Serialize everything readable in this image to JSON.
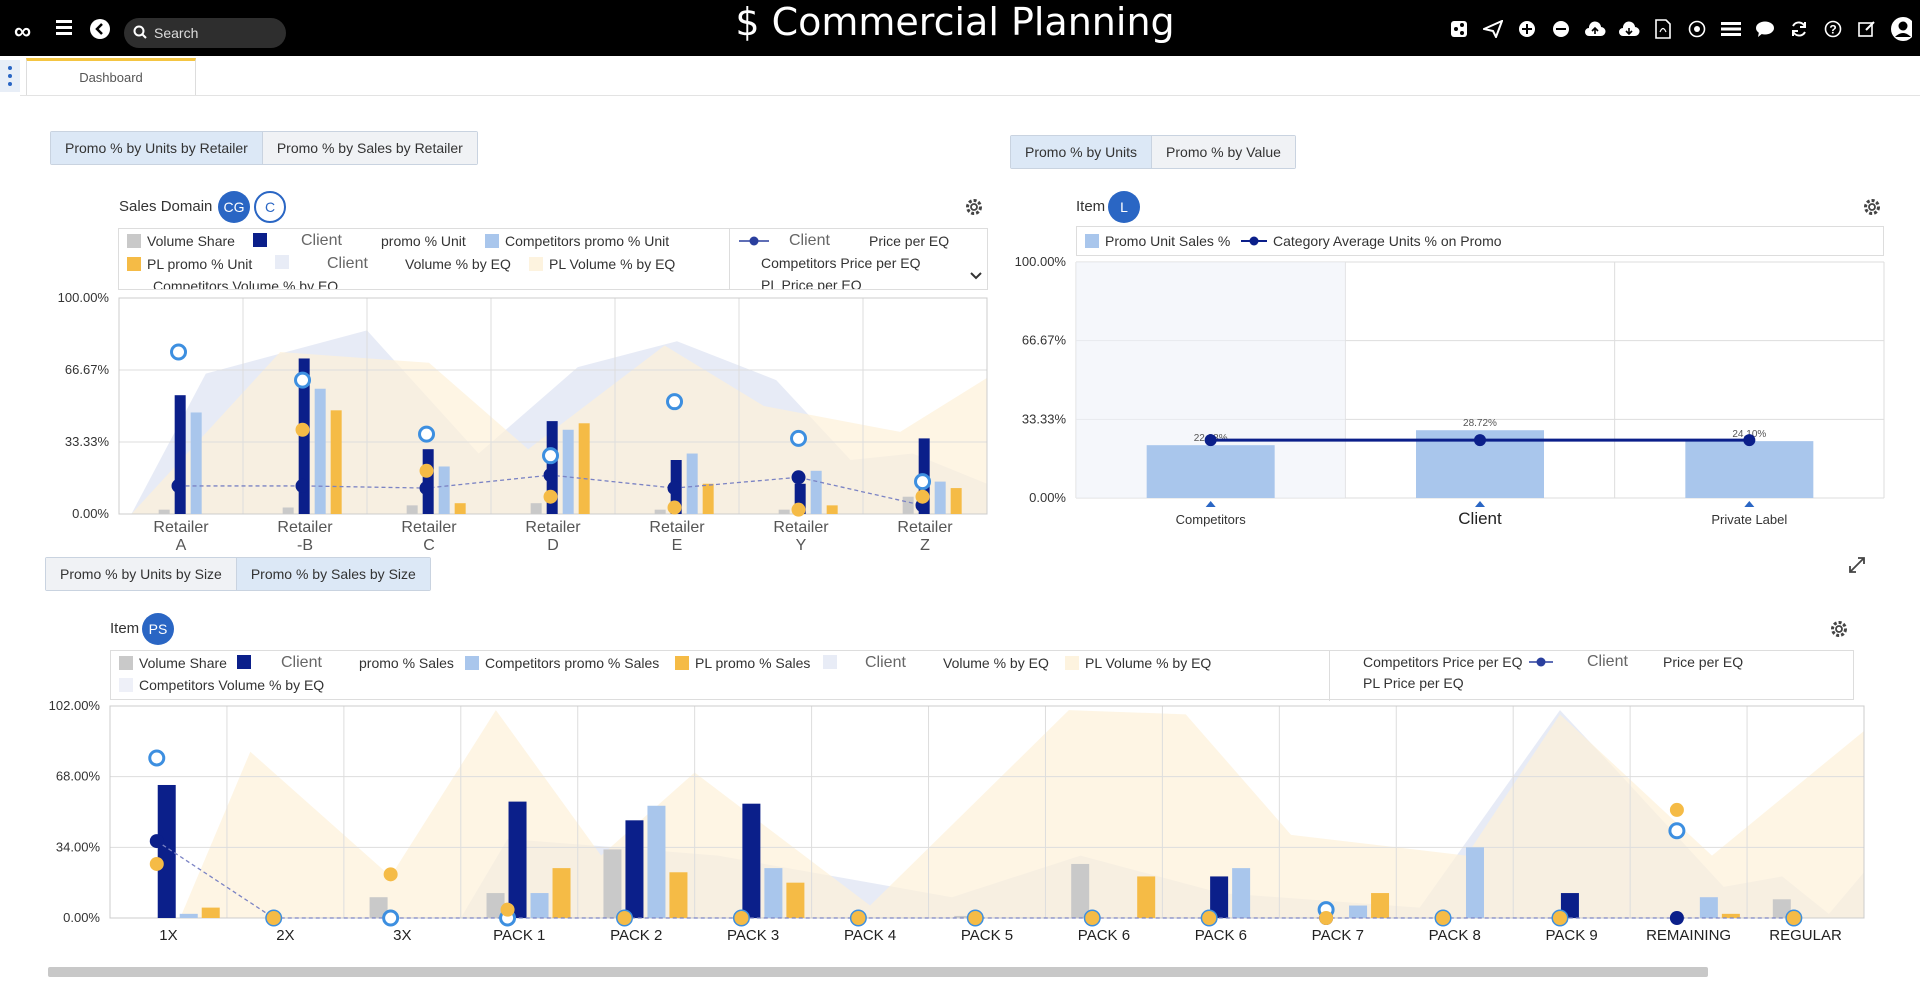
{
  "app": {
    "title": "$ Commercial Planning",
    "logo": "∞",
    "search_placeholder": "Search",
    "toolbar_icons": [
      "share-icon",
      "send-icon",
      "plus-circle-icon",
      "minus-circle-icon",
      "cloud-upload-icon",
      "cloud-download-icon",
      "pdf-icon",
      "target-icon",
      "list-icon",
      "chat-icon",
      "refresh-icon",
      "help-icon",
      "edit-icon",
      "user-icon"
    ]
  },
  "tabs": [
    {
      "label": "Dashboard"
    }
  ],
  "panel_retailer": {
    "buttons": [
      "Promo % by Units by Retailer",
      "Promo % by Sales by Retailer"
    ],
    "active": 0,
    "label": "Sales Domain",
    "badges": [
      "CG",
      "C"
    ],
    "legend": {
      "volume_share": "Volume Share",
      "client1": "Client",
      "promo_unit": "promo % Unit",
      "comp_promo_unit": "Competitors promo % Unit",
      "client2": "Client",
      "price_per_eq": "Price per EQ",
      "pl_promo_unit": "PL promo % Unit",
      "client3": "Client",
      "volume_by_eq": "Volume % by EQ",
      "pl_volume_by_eq": "PL Volume % by EQ",
      "comp_price_per_eq": "Competitors Price per EQ",
      "comp_volume_by_eq": "Competitors Volume % by EQ",
      "pl_price_per_eq": "PL Price per EQ"
    },
    "chart_data": {
      "type": "bar",
      "categories": [
        "Retailer A",
        "Retailer B",
        "Retailer C",
        "Retailer D",
        "Retailer E",
        "Retailer Y",
        "Retailer Z"
      ],
      "category_lines": [
        [
          "Retailer",
          "A"
        ],
        [
          "Retailer",
          "-B"
        ],
        [
          "Retailer",
          "C"
        ],
        [
          "Retailer",
          "D"
        ],
        [
          "Retailer",
          "E"
        ],
        [
          "Retailer",
          "Y"
        ],
        [
          "Retailer",
          "Z"
        ]
      ],
      "ylim": [
        0,
        100
      ],
      "yticks": [
        "100.00%",
        "66.67%",
        "33.33%",
        "0.00%"
      ],
      "series": [
        {
          "name": "Volume Share",
          "color": "#c9c9c9",
          "values": [
            2,
            3,
            4,
            5,
            2,
            2,
            8
          ]
        },
        {
          "name": "Client promo % Unit",
          "color": "#0b1f8a",
          "values": [
            55,
            72,
            30,
            43,
            25,
            14,
            35
          ]
        },
        {
          "name": "Competitors promo % Unit",
          "color": "#a9c6ec",
          "values": [
            47,
            58,
            22,
            39,
            28,
            20,
            15
          ]
        },
        {
          "name": "PL promo % Unit",
          "color": "#f5bb46",
          "values": [
            0,
            48,
            5,
            42,
            14,
            4,
            12
          ]
        },
        {
          "name": "Client Price per EQ",
          "kind": "dot",
          "color": "#0b1f8a",
          "values": [
            13,
            13,
            12,
            18,
            12,
            17,
            4
          ]
        },
        {
          "name": "Competitors Price per EQ",
          "kind": "ring",
          "color": "#3d8fe0",
          "values": [
            75,
            62,
            37,
            27,
            52,
            35,
            15
          ]
        },
        {
          "name": "PL Price per EQ",
          "kind": "dot",
          "color": "#f5bb46",
          "values": [
            null,
            39,
            20,
            8,
            3,
            2,
            8
          ]
        }
      ]
    }
  },
  "panel_item_l": {
    "buttons": [
      "Promo % by Units",
      "Promo % by Value"
    ],
    "active": 0,
    "label": "Item",
    "badge": "L",
    "legend": {
      "promo_unit_sales": "Promo Unit Sales %",
      "category_avg": "Category Average Units % on Promo"
    },
    "chart_data": {
      "type": "bar",
      "categories": [
        "Competitors",
        "Client",
        "Private Label"
      ],
      "ylim": [
        0,
        100
      ],
      "yticks": [
        "100.00%",
        "66.67%",
        "33.33%",
        "0.00%"
      ],
      "series": [
        {
          "name": "Promo Unit Sales %",
          "color": "#a9c6ec",
          "values": [
            22.38,
            28.72,
            24.1
          ],
          "labels": [
            "22.38%",
            "28.72%",
            "24.10%"
          ]
        },
        {
          "name": "Category Average Units % on Promo",
          "kind": "line",
          "color": "#0b1f8a",
          "values": [
            24.5,
            24.5,
            24.5
          ]
        }
      ]
    }
  },
  "panel_size": {
    "buttons": [
      "Promo % by Units by Size",
      "Promo % by Sales by Size"
    ],
    "active": 1,
    "label": "Item",
    "badge": "PS",
    "legend": {
      "volume_share": "Volume Share",
      "client1": "Client",
      "promo_sales": "promo % Sales",
      "comp_promo_sales": "Competitors promo % Sales",
      "pl_promo_sales": "PL promo % Sales",
      "client2": "Client",
      "volume_by_eq": "Volume % by EQ",
      "pl_volume_by_eq": "PL Volume % by EQ",
      "comp_volume_by_eq": "Competitors Volume % by EQ",
      "comp_price_per_eq": "Competitors Price per EQ",
      "client3": "Client",
      "price_per_eq": "Price per EQ",
      "pl_price_per_eq": "PL Price per EQ"
    },
    "chart_data": {
      "type": "bar",
      "categories": [
        "1X",
        "2X",
        "3X",
        "PACK 1",
        "PACK 2",
        "PACK 3",
        "PACK 4",
        "PACK 5",
        "PACK 6",
        "PACK 6",
        "PACK 7",
        "PACK 8",
        "PACK 9",
        "REMAINING",
        "REGULAR"
      ],
      "ylim": [
        0,
        102
      ],
      "yticks": [
        "102.00%",
        "68.00%",
        "34.00%",
        "0.00%"
      ],
      "series": [
        {
          "name": "Volume Share",
          "color": "#c9c9c9",
          "values": [
            0,
            0,
            10,
            12,
            33,
            0,
            0,
            1,
            26,
            0,
            0,
            0,
            0,
            0,
            9
          ]
        },
        {
          "name": "Client promo % Sales",
          "color": "#0b1f8a",
          "values": [
            64,
            0,
            0,
            56,
            47,
            55,
            0,
            0,
            0,
            20,
            0,
            0,
            12,
            0,
            0
          ]
        },
        {
          "name": "Competitors promo % Sales",
          "color": "#a9c6ec",
          "values": [
            2,
            0,
            0,
            12,
            54,
            24,
            0,
            0,
            0,
            24,
            6,
            34,
            0,
            10,
            0
          ]
        },
        {
          "name": "PL promo % Sales",
          "color": "#f5bb46",
          "values": [
            5,
            0,
            0,
            24,
            22,
            17,
            0,
            0,
            20,
            0,
            12,
            0,
            0,
            2,
            0
          ]
        },
        {
          "name": "Client Price per EQ",
          "kind": "dot",
          "color": "#0b1f8a",
          "values": [
            37,
            0,
            0,
            0,
            0,
            0,
            0,
            0,
            0,
            0,
            0,
            0,
            0,
            0,
            0
          ]
        },
        {
          "name": "Competitors Price per EQ",
          "kind": "ring",
          "color": "#3d8fe0",
          "values": [
            77,
            0,
            0,
            0,
            0,
            0,
            0,
            0,
            0,
            0,
            4,
            0,
            0,
            42,
            0
          ]
        },
        {
          "name": "PL Price per EQ",
          "kind": "dot",
          "color": "#f5bb46",
          "values": [
            26,
            0,
            21,
            4,
            0,
            0,
            0,
            0,
            0,
            0,
            0,
            0,
            0,
            52,
            0
          ]
        }
      ]
    }
  }
}
